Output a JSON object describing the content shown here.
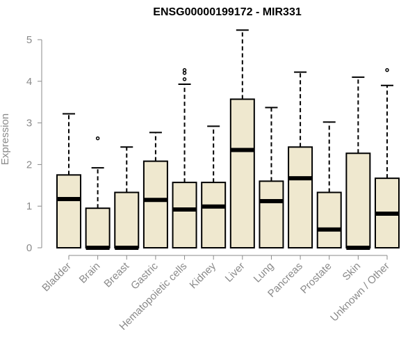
{
  "chart_data": {
    "type": "boxplot",
    "title": "ENSG00000199172 - MIR331",
    "xlabel": "",
    "ylabel": "Expression",
    "ylim": [
      0,
      5
    ],
    "yticks": [
      0,
      1,
      2,
      3,
      4,
      5
    ],
    "grid": false,
    "legend": "none",
    "box_fill": "#efe8cf",
    "stroke": "#000000",
    "categories": [
      "Bladder",
      "Brain",
      "Breast",
      "Gastric",
      "Hematopoietic cells",
      "Kidney",
      "Liver",
      "Lung",
      "Pancreas",
      "Prostate",
      "Skin",
      "Unknown / Other"
    ],
    "boxes": [
      {
        "min": 0,
        "q1": 0,
        "median": 1.17,
        "q3": 1.75,
        "max": 3.22,
        "outliers": []
      },
      {
        "min": 0,
        "q1": 0,
        "median": 0,
        "q3": 0.95,
        "max": 1.92,
        "outliers": [
          2.63
        ]
      },
      {
        "min": 0,
        "q1": 0,
        "median": 0,
        "q3": 1.33,
        "max": 2.42,
        "outliers": []
      },
      {
        "min": 0,
        "q1": 0,
        "median": 1.15,
        "q3": 2.08,
        "max": 2.77,
        "outliers": []
      },
      {
        "min": 0,
        "q1": 0,
        "median": 0.92,
        "q3": 1.57,
        "max": 3.93,
        "outliers": [
          4.05,
          4.2,
          4.27
        ]
      },
      {
        "min": 0,
        "q1": 0,
        "median": 0.99,
        "q3": 1.57,
        "max": 2.92,
        "outliers": []
      },
      {
        "min": 0,
        "q1": 0,
        "median": 2.35,
        "q3": 3.57,
        "max": 5.23,
        "outliers": []
      },
      {
        "min": 0,
        "q1": 0,
        "median": 1.12,
        "q3": 1.6,
        "max": 3.37,
        "outliers": []
      },
      {
        "min": 0,
        "q1": 0,
        "median": 1.67,
        "q3": 2.42,
        "max": 4.22,
        "outliers": []
      },
      {
        "min": 0,
        "q1": 0,
        "median": 0.44,
        "q3": 1.33,
        "max": 3.02,
        "outliers": []
      },
      {
        "min": 0,
        "q1": 0,
        "median": 0,
        "q3": 2.27,
        "max": 4.1,
        "outliers": []
      },
      {
        "min": 0,
        "q1": 0,
        "median": 0.82,
        "q3": 1.67,
        "max": 3.9,
        "outliers": [
          4.27
        ]
      }
    ]
  }
}
